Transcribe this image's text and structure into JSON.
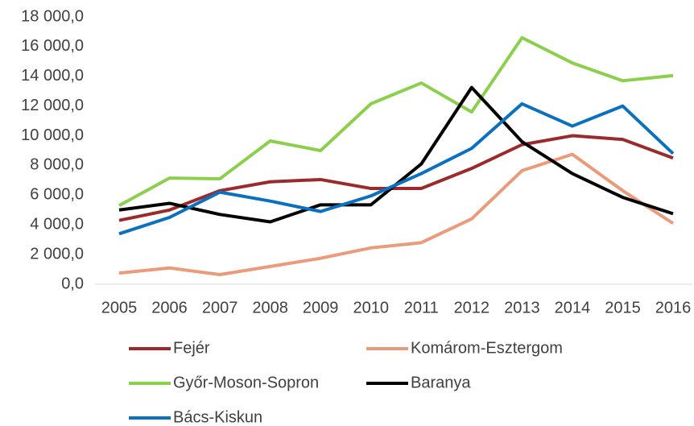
{
  "chart_data": {
    "type": "line",
    "categories": [
      "2005",
      "2006",
      "2007",
      "2008",
      "2009",
      "2010",
      "2011",
      "2012",
      "2013",
      "2014",
      "2015",
      "2016"
    ],
    "series": [
      {
        "name": "Fejér",
        "color": "#9b2a2c",
        "values": [
          4300,
          5000,
          6300,
          6900,
          7050,
          6450,
          6450,
          7800,
          9400,
          10000,
          9750,
          8500
        ]
      },
      {
        "name": "Komárom-Esztergom",
        "color": "#eb9a7a",
        "values": [
          750,
          1100,
          650,
          1200,
          1750,
          2450,
          2800,
          4400,
          7650,
          8750,
          6300,
          4100
        ]
      },
      {
        "name": "Győr-Moson-Sopron",
        "color": "#8ccf4d",
        "values": [
          5300,
          7150,
          7100,
          9650,
          9000,
          12150,
          13550,
          11600,
          16600,
          14900,
          13700,
          14050
        ]
      },
      {
        "name": "Baranya",
        "color": "#000000",
        "values": [
          5000,
          5450,
          4700,
          4200,
          5350,
          5350,
          8100,
          13250,
          9600,
          7450,
          5850,
          4750
        ]
      },
      {
        "name": "Bács-Kiskun",
        "color": "#0a70c0",
        "values": [
          3400,
          4500,
          6200,
          5600,
          4900,
          5950,
          7450,
          9150,
          12150,
          10650,
          12000,
          8800
        ]
      }
    ],
    "ylim": [
      0,
      18000
    ],
    "yticks": [
      {
        "value": 0,
        "label": "0,0"
      },
      {
        "value": 2000,
        "label": "2 000,0"
      },
      {
        "value": 4000,
        "label": "4 000,0"
      },
      {
        "value": 6000,
        "label": "6 000,0"
      },
      {
        "value": 8000,
        "label": "8 000,0"
      },
      {
        "value": 10000,
        "label": "10 000,0"
      },
      {
        "value": 12000,
        "label": "12 000,0"
      },
      {
        "value": 14000,
        "label": "14 000,0"
      },
      {
        "value": 16000,
        "label": "16 000,0"
      },
      {
        "value": 18000,
        "label": "18 000,0"
      }
    ],
    "grid": false
  }
}
